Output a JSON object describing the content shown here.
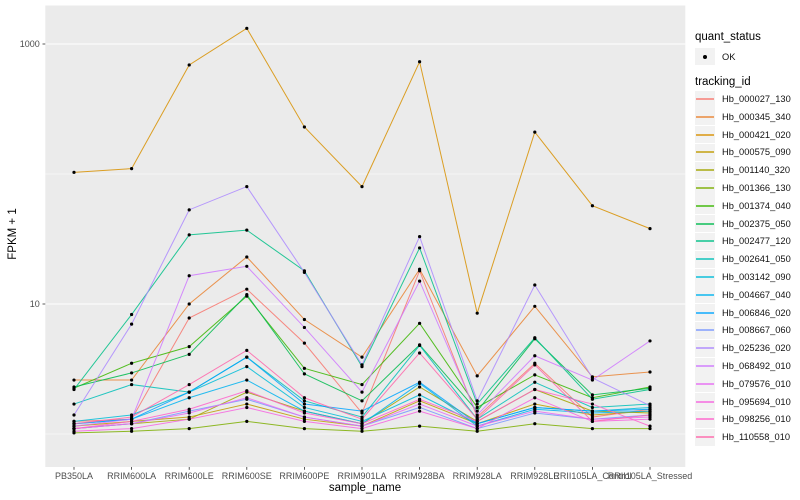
{
  "figure": {
    "y_axis": {
      "title": "FPKM + 1",
      "tick_labels": [
        "1000",
        "10"
      ],
      "tick_values": [
        1000,
        10
      ]
    },
    "x_axis": {
      "title": "sample_name"
    },
    "legend": {
      "quant_status": {
        "title": "quant_status",
        "items": [
          {
            "label": "OK"
          }
        ]
      },
      "tracking_id": {
        "title": "tracking_id"
      }
    },
    "colors": {
      "panel_bg": "#EBEBEB",
      "grid": "#FFFFFF",
      "tick_text": "#4D4D4D",
      "axis_text": "#000000",
      "legend_key_bg": "#F2F2F2",
      "point": "#000000"
    }
  },
  "chart_data": {
    "type": "line",
    "title": "",
    "xlabel": "sample_name",
    "ylabel": "FPKM + 1",
    "yscale": "log10",
    "ylim": [
      0.55,
      1950
    ],
    "grid": "on",
    "legend_position": "right",
    "point_marker": "black dot (quant_status OK)",
    "major_gridlines": [
      10,
      1000
    ],
    "minor_gridlines": [
      1,
      100
    ],
    "x_categories": [
      "PB350LA",
      "RRIM600LA",
      "RRIM600LE",
      "RRIM600SE",
      "RRIM600PE",
      "RRIM901LA",
      "RRIM928BA",
      "RRIM928LA",
      "RRIM928LE",
      "RRII105LA_Control",
      "RRII105LA_Stressed"
    ],
    "series": [
      {
        "name": "Hb_000027_130",
        "color": "#F8766D",
        "values": [
          1.25,
          1.3,
          7.8,
          13,
          5.0,
          1.45,
          18,
          1.35,
          3.5,
          1.35,
          1.55
        ]
      },
      {
        "name": "Hb_000345_340",
        "color": "#EA8331",
        "values": [
          2.6,
          2.6,
          10,
          23,
          7.6,
          3.9,
          18.5,
          2.8,
          9.6,
          2.75,
          3.0
        ]
      },
      {
        "name": "Hb_000421_020",
        "color": "#D89000",
        "values": [
          103,
          110,
          690,
          1320,
          230,
          80,
          730,
          8.5,
          210,
          57,
          38
        ]
      },
      {
        "name": "Hb_000575_090",
        "color": "#C09B00",
        "values": [
          1.15,
          1.25,
          1.35,
          1.7,
          1.3,
          1.15,
          1.8,
          1.2,
          1.7,
          1.4,
          1.5
        ]
      },
      {
        "name": "Hb_001140_320",
        "color": "#A3A500",
        "values": [
          1.1,
          1.2,
          1.3,
          2.1,
          1.5,
          1.2,
          2.3,
          1.25,
          2.2,
          1.5,
          1.45
        ]
      },
      {
        "name": "Hb_001366_130",
        "color": "#7CAE00",
        "values": [
          1.02,
          1.05,
          1.1,
          1.25,
          1.1,
          1.05,
          1.15,
          1.05,
          1.2,
          1.1,
          1.1
        ]
      },
      {
        "name": "Hb_001374_040",
        "color": "#39B600",
        "values": [
          2.25,
          3.5,
          4.7,
          11.5,
          3.2,
          2.4,
          7.1,
          1.6,
          2.85,
          1.9,
          2.3
        ]
      },
      {
        "name": "Hb_002375_050",
        "color": "#00BB4E",
        "values": [
          2.3,
          2.95,
          4.1,
          11.8,
          2.9,
          1.8,
          4.85,
          1.5,
          5.4,
          2.0,
          2.25
        ]
      },
      {
        "name": "Hb_002477_120",
        "color": "#00C087",
        "values": [
          2.2,
          8.3,
          34,
          37,
          18,
          3.3,
          27,
          1.7,
          5.5,
          1.85,
          2.2
        ]
      },
      {
        "name": "Hb_002641_050",
        "color": "#00C0B8",
        "values": [
          1.7,
          2.4,
          2.1,
          3.9,
          1.8,
          1.35,
          4.8,
          1.3,
          2.5,
          1.6,
          1.7
        ]
      },
      {
        "name": "Hb_003142_090",
        "color": "#00BCD8",
        "values": [
          1.25,
          1.4,
          2.1,
          3.3,
          1.6,
          1.25,
          2.0,
          1.2,
          1.6,
          1.5,
          1.6
        ]
      },
      {
        "name": "Hb_004667_040",
        "color": "#00B3F0",
        "values": [
          1.2,
          1.3,
          1.9,
          2.6,
          1.5,
          1.2,
          2.45,
          1.15,
          1.55,
          1.45,
          1.5
        ]
      },
      {
        "name": "Hb_006846_020",
        "color": "#00A5FF",
        "values": [
          1.2,
          1.3,
          2.1,
          3.9,
          1.7,
          1.5,
          2.5,
          1.2,
          1.6,
          1.5,
          1.55
        ]
      },
      {
        "name": "Hb_008667_060",
        "color": "#7997FF",
        "values": [
          1.1,
          1.2,
          1.5,
          1.85,
          1.35,
          1.15,
          1.6,
          1.1,
          1.45,
          1.3,
          1.4
        ]
      },
      {
        "name": "Hb_025236_020",
        "color": "#AC88FF",
        "values": [
          1.4,
          7.0,
          53,
          80,
          17.5,
          3.4,
          33,
          1.8,
          14,
          2.7,
          1.65
        ]
      },
      {
        "name": "Hb_068492_010",
        "color": "#CF78FF",
        "values": [
          1.15,
          1.3,
          16.5,
          19.5,
          6.6,
          2.1,
          15,
          1.4,
          4.0,
          2.6,
          5.2
        ]
      },
      {
        "name": "Hb_079576_010",
        "color": "#E76BF3",
        "values": [
          1.1,
          1.2,
          1.45,
          1.9,
          1.35,
          1.15,
          1.7,
          1.15,
          1.5,
          1.3,
          1.35
        ]
      },
      {
        "name": "Hb_095694_010",
        "color": "#F763E0",
        "values": [
          1.05,
          1.1,
          1.3,
          1.6,
          1.25,
          1.1,
          1.5,
          1.1,
          1.9,
          1.25,
          1.3
        ]
      },
      {
        "name": "Hb_098256_010",
        "color": "#FF61CC",
        "values": [
          1.1,
          1.25,
          1.55,
          2.15,
          1.45,
          1.2,
          1.85,
          1.25,
          2.2,
          1.7,
          1.15
        ]
      },
      {
        "name": "Hb_110558_010",
        "color": "#FF65AA",
        "values": [
          1.2,
          1.35,
          2.4,
          4.4,
          1.9,
          1.3,
          4.2,
          1.3,
          3.4,
          1.25,
          1.4
        ]
      }
    ]
  }
}
